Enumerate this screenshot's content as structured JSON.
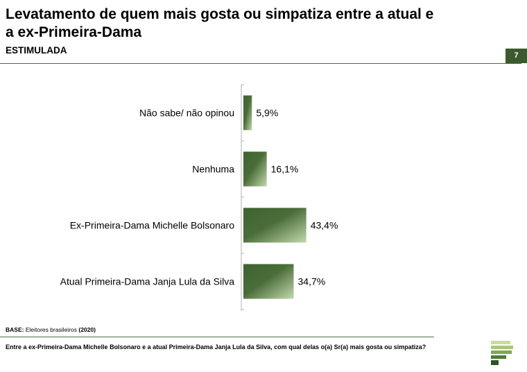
{
  "header": {
    "title": "Levatamento de quem mais gosta ou simpatiza entre a atual e a ex-Primeira-Dama",
    "subtitle": "ESTIMULADA",
    "page_number": "7"
  },
  "footer": {
    "base_label": "BASE:",
    "base_text": "Eleitores brasileiros",
    "base_year": "(2020)",
    "question": "Entre a ex-Primeira-Dama Michelle Bolsonaro e a atual Primeira-Dama Janja Lula da Silva, com qual delas o(a) Sr(a) mais gosta ou simpatiza?"
  },
  "colors": {
    "bar_dark": "#3f6130",
    "bar_light": "#c2d8ad",
    "accent": "#3c5a2d"
  },
  "chart_data": {
    "type": "bar",
    "orientation": "horizontal",
    "categories": [
      "Não sabe/ não opinou",
      "Nenhuma",
      "Ex-Primeira-Dama Michelle Bolsonaro",
      "Atual Primeira-Dama Janja Lula da Silva"
    ],
    "values": [
      5.9,
      16.1,
      43.4,
      34.7
    ],
    "value_labels": [
      "5,9%",
      "16,1%",
      "43,4%",
      "34,7%"
    ],
    "xlim": [
      0,
      100
    ],
    "grid": false,
    "legend": "none"
  }
}
